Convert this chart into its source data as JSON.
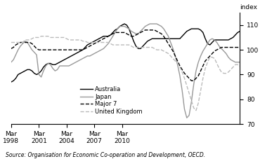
{
  "ylabel": "index",
  "ylim": [
    70,
    115
  ],
  "yticks": [
    70,
    80,
    90,
    100,
    110
  ],
  "source": "Source: Organisation for Economic Co-operation and Development, OECD.",
  "x_tick_positions": [
    0,
    12,
    24,
    36,
    48
  ],
  "australia": [
    87.0,
    87.5,
    88.5,
    90.0,
    90.5,
    91.0,
    91.5,
    92.0,
    92.0,
    91.5,
    90.5,
    90.0,
    90.5,
    91.5,
    93.0,
    94.0,
    94.5,
    94.5,
    94.0,
    94.0,
    94.5,
    95.0,
    95.5,
    96.0,
    96.5,
    97.0,
    97.5,
    98.0,
    98.5,
    99.0,
    99.5,
    100.0,
    101.0,
    102.0,
    102.5,
    103.0,
    103.5,
    104.0,
    104.5,
    105.0,
    105.5,
    105.5,
    105.5,
    106.0,
    107.0,
    108.0,
    108.5,
    109.5,
    110.0,
    110.5,
    110.0,
    108.5,
    106.0,
    103.5,
    101.5,
    100.5,
    100.5,
    101.5,
    102.5,
    103.5,
    104.0,
    104.5,
    104.5,
    104.5,
    104.5,
    104.5,
    104.5,
    104.5,
    104.5,
    104.5,
    104.5,
    104.5,
    104.5,
    104.5,
    105.5,
    106.5,
    107.5,
    108.0,
    108.5,
    108.5,
    108.5,
    108.5,
    108.0,
    107.0,
    104.5,
    102.5,
    102.0,
    103.0,
    104.0,
    104.0,
    104.0,
    104.0,
    104.0,
    104.0,
    104.0,
    104.5,
    105.0,
    106.0,
    107.0,
    107.5
  ],
  "japan": [
    95.0,
    96.0,
    98.0,
    100.0,
    101.5,
    102.5,
    103.5,
    103.0,
    101.5,
    100.0,
    99.0,
    98.0,
    90.0,
    89.0,
    91.5,
    93.5,
    94.5,
    94.0,
    92.5,
    91.5,
    92.0,
    93.5,
    93.5,
    93.5,
    93.5,
    93.5,
    94.0,
    94.5,
    95.0,
    95.5,
    96.0,
    96.5,
    97.0,
    97.5,
    97.5,
    98.0,
    98.5,
    99.0,
    99.5,
    100.0,
    100.5,
    101.5,
    102.5,
    104.0,
    105.5,
    107.0,
    108.5,
    109.5,
    109.5,
    109.5,
    109.0,
    108.5,
    107.5,
    107.0,
    106.5,
    106.5,
    107.5,
    108.5,
    109.5,
    110.0,
    110.5,
    110.5,
    110.5,
    110.5,
    110.0,
    109.5,
    108.5,
    107.0,
    105.5,
    103.0,
    100.5,
    97.5,
    94.0,
    89.5,
    83.5,
    76.0,
    72.5,
    73.5,
    79.0,
    86.0,
    91.5,
    95.0,
    97.5,
    99.5,
    101.0,
    102.5,
    104.0,
    104.5,
    104.0,
    103.0,
    101.5,
    100.5,
    99.5,
    98.5,
    97.0,
    96.0,
    95.5,
    95.0,
    95.0,
    95.0
  ],
  "major7": [
    100.5,
    101.0,
    102.0,
    102.5,
    103.0,
    103.0,
    103.0,
    103.0,
    103.0,
    102.5,
    101.5,
    100.5,
    100.0,
    100.0,
    100.0,
    100.0,
    100.0,
    100.0,
    100.0,
    100.0,
    100.0,
    100.0,
    100.0,
    100.0,
    100.0,
    100.0,
    100.0,
    100.0,
    100.0,
    100.0,
    100.0,
    100.0,
    100.5,
    101.0,
    101.5,
    102.0,
    102.5,
    103.0,
    103.5,
    104.0,
    104.5,
    105.0,
    105.5,
    106.0,
    106.5,
    107.0,
    107.0,
    107.0,
    107.0,
    107.0,
    106.5,
    106.0,
    105.5,
    105.5,
    106.0,
    106.5,
    107.0,
    107.5,
    108.0,
    108.0,
    108.0,
    108.0,
    108.0,
    107.5,
    107.0,
    106.5,
    105.5,
    104.0,
    102.5,
    101.0,
    99.5,
    97.5,
    95.5,
    93.5,
    92.0,
    90.5,
    89.5,
    88.5,
    87.5,
    87.5,
    88.5,
    89.5,
    91.5,
    93.5,
    95.5,
    96.5,
    97.5,
    98.5,
    99.5,
    100.0,
    100.5,
    101.0,
    101.0,
    101.0,
    101.0,
    101.0,
    101.0,
    101.0,
    101.0,
    101.0
  ],
  "uk": [
    103.0,
    103.0,
    103.0,
    103.0,
    103.0,
    103.0,
    104.0,
    104.0,
    104.0,
    104.5,
    105.0,
    105.0,
    105.0,
    105.5,
    105.5,
    105.5,
    105.5,
    105.0,
    105.0,
    105.0,
    105.0,
    105.0,
    105.0,
    105.0,
    104.5,
    104.0,
    104.0,
    104.0,
    104.0,
    104.0,
    104.0,
    103.5,
    103.5,
    103.0,
    103.0,
    103.0,
    103.0,
    103.0,
    103.0,
    103.0,
    103.0,
    103.0,
    103.0,
    102.5,
    102.0,
    102.0,
    102.0,
    102.0,
    102.0,
    102.0,
    102.0,
    102.0,
    101.5,
    101.0,
    101.0,
    101.0,
    101.0,
    101.0,
    101.0,
    101.0,
    101.0,
    101.0,
    100.5,
    100.0,
    100.0,
    100.0,
    99.5,
    99.0,
    98.5,
    97.5,
    96.5,
    95.5,
    94.5,
    93.0,
    91.0,
    88.5,
    85.5,
    82.5,
    79.5,
    76.5,
    75.5,
    78.5,
    83.5,
    88.5,
    92.5,
    95.0,
    97.0,
    97.0,
    96.5,
    94.5,
    92.5,
    91.0,
    90.5,
    90.5,
    91.0,
    92.0,
    93.0,
    94.0,
    94.0,
    93.5
  ],
  "colors": {
    "australia": "#000000",
    "japan": "#999999",
    "major7": "#000000",
    "uk": "#bbbbbb"
  },
  "linestyles": {
    "australia": "-",
    "japan": "-",
    "major7": "--",
    "uk": "--"
  },
  "linewidths": {
    "australia": 1.0,
    "japan": 1.0,
    "major7": 1.0,
    "uk": 1.0
  },
  "legend_labels": [
    "Australia",
    "Japan",
    "Major 7",
    "United Kingdom"
  ]
}
